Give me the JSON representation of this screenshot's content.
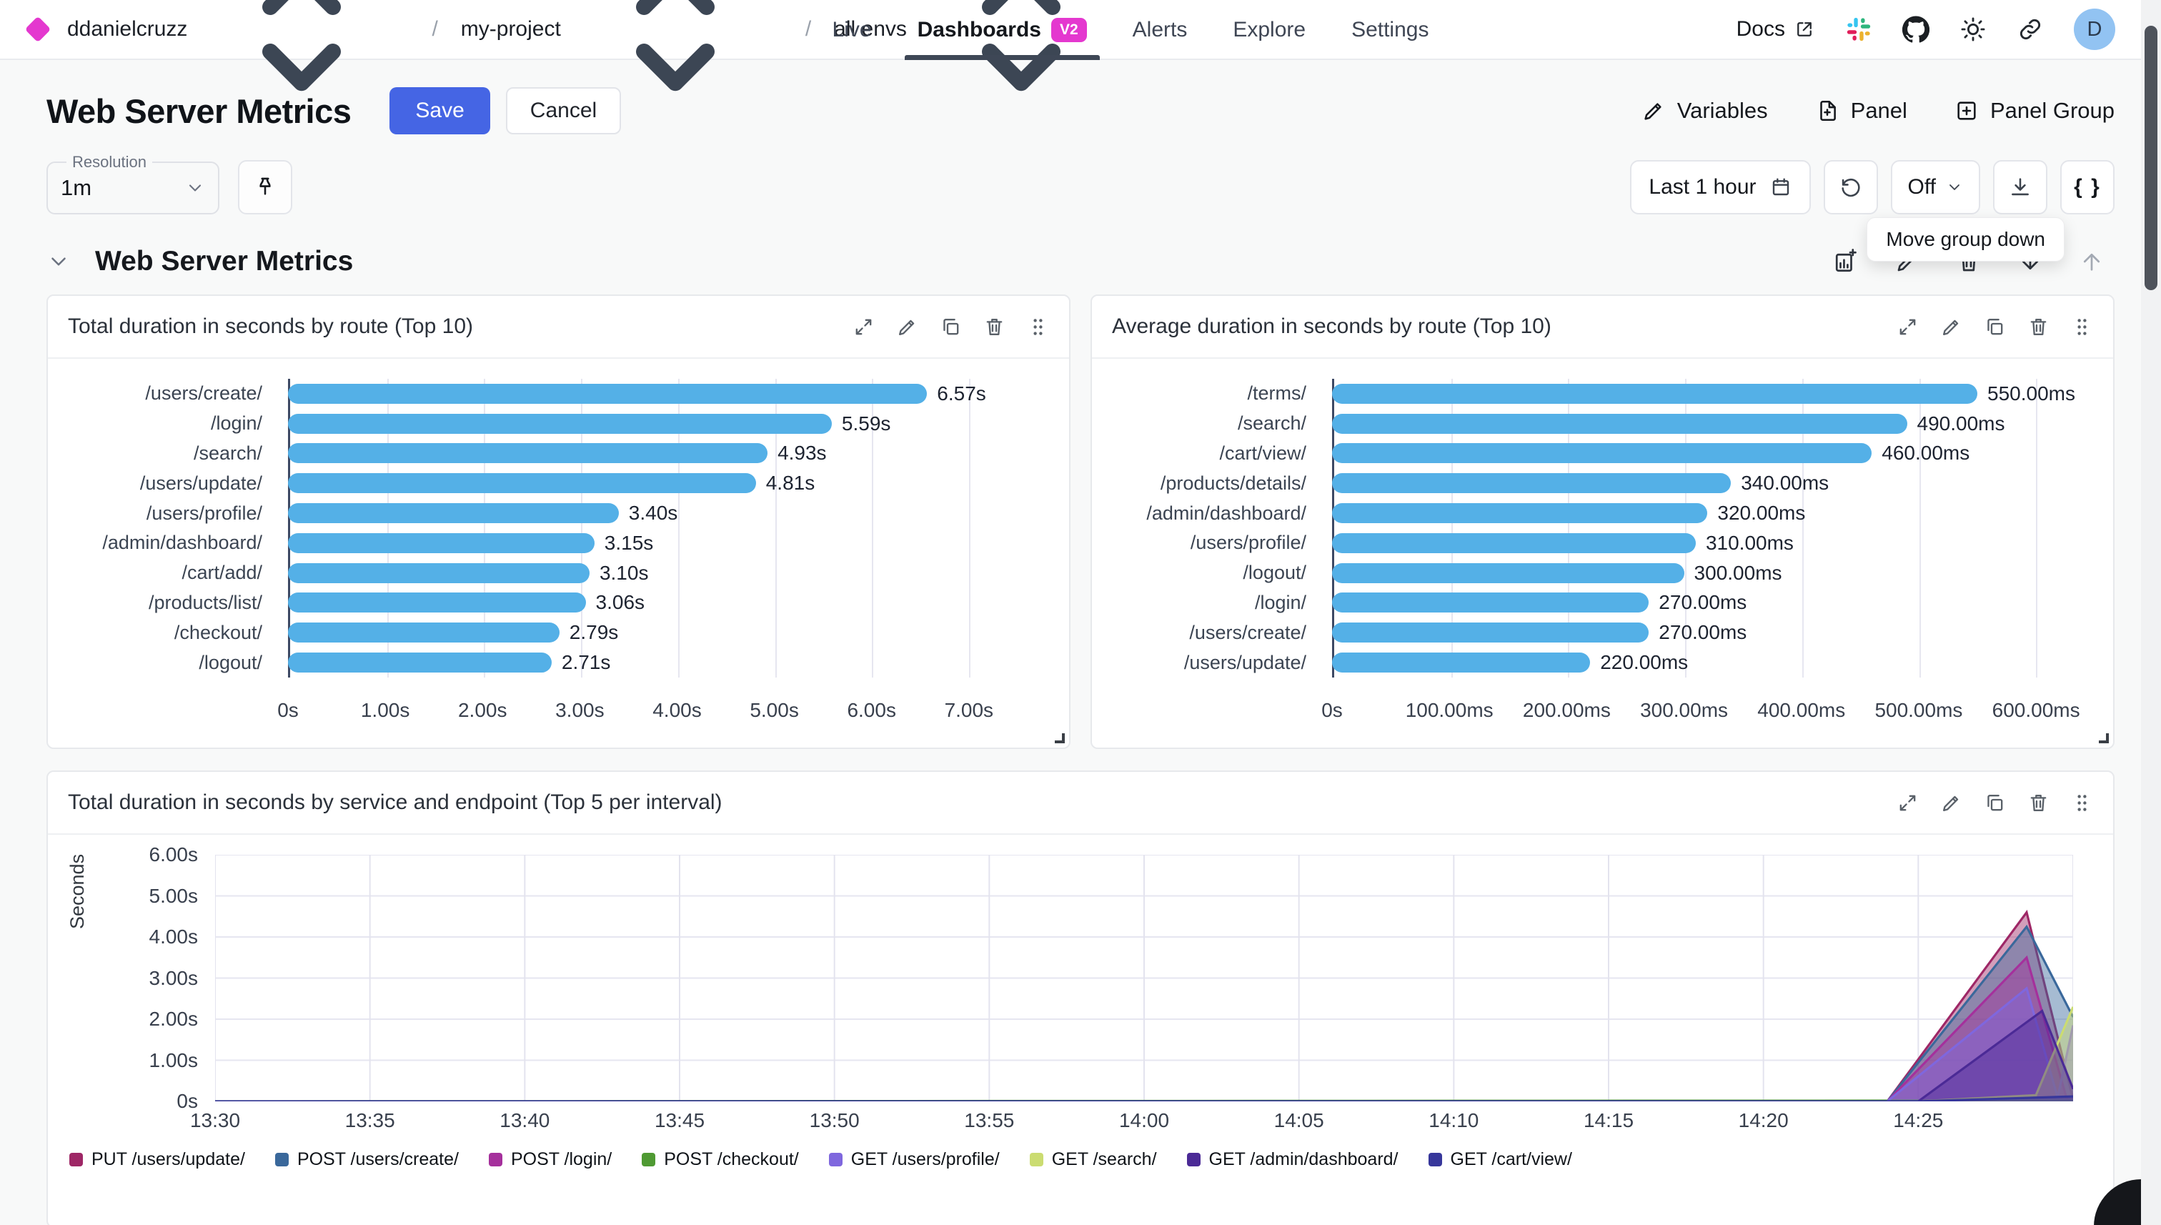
{
  "nav": {
    "breadcrumb": [
      {
        "label": "ddanielcruzz"
      },
      {
        "label": "my-project"
      },
      {
        "label": "all envs"
      }
    ],
    "tabs": [
      {
        "label": "Live"
      },
      {
        "label": "Dashboards",
        "badge": "V2",
        "active": true
      },
      {
        "label": "Alerts"
      },
      {
        "label": "Explore"
      },
      {
        "label": "Settings"
      }
    ],
    "docs_label": "Docs",
    "avatar_initial": "D"
  },
  "header": {
    "title": "Web Server Metrics",
    "save_label": "Save",
    "cancel_label": "Cancel",
    "actions": [
      {
        "label": "Variables",
        "icon": "pencil"
      },
      {
        "label": "Panel",
        "icon": "file-plus"
      },
      {
        "label": "Panel Group",
        "icon": "plus-square"
      }
    ]
  },
  "toolbar": {
    "resolution_label": "Resolution",
    "resolution_value": "1m",
    "time_range": "Last 1 hour",
    "refresh_value": "Off",
    "braces_label": "{ }",
    "tooltip": "Move group down"
  },
  "group": {
    "title": "Web Server Metrics"
  },
  "colors": {
    "accent_magenta": "#e438cf",
    "primary_blue": "#4565e4",
    "bar_blue": "#54b0e7",
    "grid_line": "#e6e6f0",
    "axis_dark": "#3d4964"
  },
  "chart_data": [
    {
      "type": "bar",
      "orientation": "horizontal",
      "title": "Total duration in seconds by route (Top 10)",
      "categories": [
        "/users/create/",
        "/login/",
        "/search/",
        "/users/update/",
        "/users/profile/",
        "/admin/dashboard/",
        "/cart/add/",
        "/products/list/",
        "/checkout/",
        "/logout/"
      ],
      "values": [
        6.57,
        5.59,
        4.93,
        4.81,
        3.4,
        3.15,
        3.1,
        3.06,
        2.79,
        2.71
      ],
      "value_labels": [
        "6.57s",
        "5.59s",
        "4.93s",
        "4.81s",
        "3.40s",
        "3.15s",
        "3.10s",
        "3.06s",
        "2.79s",
        "2.71s"
      ],
      "x_tick_values": [
        0,
        1,
        2,
        3,
        4,
        5,
        6,
        7
      ],
      "x_ticks": [
        "0s",
        "1.00s",
        "2.00s",
        "3.00s",
        "4.00s",
        "5.00s",
        "6.00s",
        "7.00s"
      ],
      "xmax": 7.78,
      "bar_color": "#54b0e7",
      "grid": true,
      "legend": "none"
    },
    {
      "type": "bar",
      "orientation": "horizontal",
      "title": "Average duration in seconds by route (Top 10)",
      "categories": [
        "/terms/",
        "/search/",
        "/cart/view/",
        "/products/details/",
        "/admin/dashboard/",
        "/users/profile/",
        "/logout/",
        "/login/",
        "/users/create/",
        "/users/update/"
      ],
      "values": [
        550,
        490,
        460,
        340,
        320,
        310,
        300,
        270,
        270,
        220
      ],
      "value_labels": [
        "550.00ms",
        "490.00ms",
        "460.00ms",
        "340.00ms",
        "320.00ms",
        "310.00ms",
        "300.00ms",
        "270.00ms",
        "270.00ms",
        "220.00ms"
      ],
      "x_tick_values": [
        0,
        100,
        200,
        300,
        400,
        500,
        600
      ],
      "x_ticks": [
        "0s",
        "100.00ms",
        "200.00ms",
        "300.00ms",
        "400.00ms",
        "500.00ms",
        "600.00ms"
      ],
      "xmax": 645,
      "bar_color": "#54b0e7",
      "grid": true,
      "legend": "none"
    },
    {
      "type": "area",
      "title": "Total duration in seconds by service and endpoint (Top 5 per interval)",
      "ylabel": "Seconds",
      "ylim": [
        0,
        6
      ],
      "xlim_minutes": [
        0,
        60
      ],
      "y_tick_values": [
        0,
        1,
        2,
        3,
        4,
        5,
        6
      ],
      "y_ticks": [
        "0s",
        "1.00s",
        "2.00s",
        "3.00s",
        "4.00s",
        "5.00s",
        "6.00s"
      ],
      "x_tick_minutes": [
        0,
        5,
        10,
        15,
        20,
        25,
        30,
        35,
        40,
        45,
        50,
        55
      ],
      "x_ticks": [
        "13:30",
        "13:35",
        "13:40",
        "13:45",
        "13:50",
        "13:55",
        "14:00",
        "14:05",
        "14:10",
        "14:15",
        "14:20",
        "14:25"
      ],
      "grid": true,
      "legend_position": "bottom",
      "fill_opacity": 0.45,
      "series": [
        {
          "name": "PUT /users/update/",
          "color": "#9e2766",
          "points": [
            [
              54,
              0
            ],
            [
              58.5,
              4.6
            ],
            [
              60,
              0.05
            ]
          ]
        },
        {
          "name": "POST /users/create/",
          "color": "#3a689b",
          "points": [
            [
              54,
              0
            ],
            [
              58.5,
              4.25
            ],
            [
              60,
              2.05
            ]
          ]
        },
        {
          "name": "POST /login/",
          "color": "#a5309c",
          "points": [
            [
              54,
              0
            ],
            [
              58.5,
              3.5
            ],
            [
              59.8,
              0.05
            ],
            [
              60,
              0.05
            ]
          ]
        },
        {
          "name": "POST /checkout/",
          "color": "#4f9a33",
          "points": [
            [
              0,
              0
            ],
            [
              60,
              0.02
            ]
          ]
        },
        {
          "name": "GET /users/profile/",
          "color": "#7f67de",
          "points": [
            [
              54,
              0
            ],
            [
              58.5,
              2.75
            ],
            [
              59.5,
              0.1
            ],
            [
              60,
              1.85
            ]
          ]
        },
        {
          "name": "GET /search/",
          "color": "#cbdc71",
          "points": [
            [
              55,
              0
            ],
            [
              58.8,
              0.15
            ],
            [
              60,
              2.3
            ]
          ]
        },
        {
          "name": "GET /admin/dashboard/",
          "color": "#4b2a96",
          "points": [
            [
              55,
              0
            ],
            [
              59,
              2.2
            ],
            [
              60,
              0.3
            ]
          ]
        },
        {
          "name": "GET /cart/view/",
          "color": "#37379b",
          "points": [
            [
              0,
              0
            ],
            [
              55,
              0
            ],
            [
              60,
              0.12
            ]
          ]
        }
      ]
    }
  ]
}
